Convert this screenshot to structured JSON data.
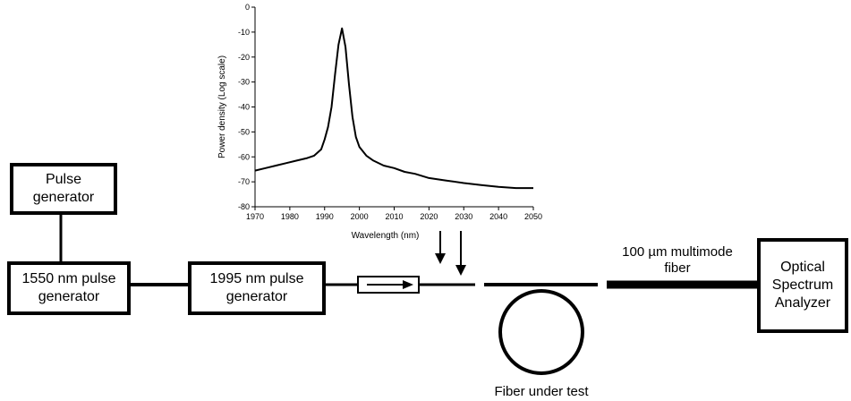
{
  "devices": {
    "pulse_generator": "Pulse\ngenerator",
    "pump_1550": "1550 nm pulse\ngenerator",
    "source_1995": "1995 nm pulse\ngenerator",
    "osa": "Optical\nSpectrum\nAnalyzer"
  },
  "labels": {
    "multimode_fiber": "100 µm multimode\nfiber",
    "fiber_under_test": "Fiber under test"
  },
  "chart_data": {
    "type": "line",
    "title": "",
    "xlabel": "Wavelength (nm)",
    "ylabel": "Power density (Log scale)",
    "xlim": [
      1970,
      2050
    ],
    "ylim": [
      -80,
      0
    ],
    "xticks": [
      1970,
      1980,
      1990,
      2000,
      2010,
      2020,
      2030,
      2040,
      2050
    ],
    "yticks": [
      0,
      -10,
      -20,
      -30,
      -40,
      -50,
      -60,
      -70,
      -80
    ],
    "grid": false,
    "series": [
      {
        "x": [
          1970,
          1973,
          1976,
          1979,
          1982,
          1985,
          1987,
          1989,
          1990,
          1991,
          1992,
          1993,
          1994,
          1995,
          1996,
          1997,
          1998,
          1999,
          2000,
          2002,
          2004,
          2007,
          2010,
          2013,
          2016,
          2020,
          2025,
          2030,
          2035,
          2040,
          2045,
          2050
        ],
        "y": [
          -65.5,
          -64.5,
          -63.5,
          -62.5,
          -61.5,
          -60.5,
          -59.5,
          -57,
          -53,
          -48,
          -40,
          -27,
          -15,
          -8.5,
          -16,
          -31,
          -44,
          -52,
          -56,
          -59.5,
          -61.5,
          -63.5,
          -64.5,
          -66,
          -66.8,
          -68.5,
          -69.5,
          -70.5,
          -71.3,
          -72,
          -72.5,
          -72.5
        ]
      }
    ]
  }
}
